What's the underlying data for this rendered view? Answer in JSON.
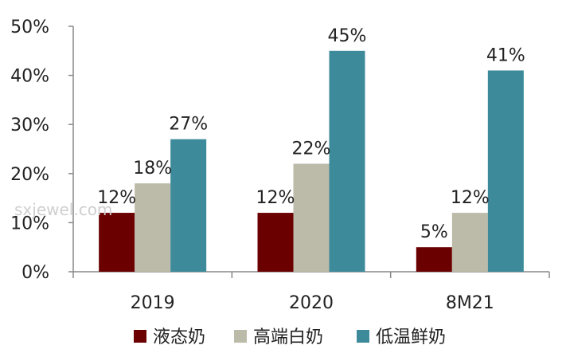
{
  "chart_data": {
    "type": "bar",
    "categories": [
      "2019",
      "2020",
      "8M21"
    ],
    "series": [
      {
        "name": "液态奶",
        "values": [
          12,
          12,
          5
        ],
        "labels": [
          "12%",
          "12%",
          "5%"
        ],
        "color": "#6b0000"
      },
      {
        "name": "高端白奶",
        "values": [
          18,
          22,
          12
        ],
        "labels": [
          "18%",
          "22%",
          "12%"
        ],
        "color": "#bcbaa8"
      },
      {
        "name": "低温鲜奶",
        "values": [
          27,
          45,
          41
        ],
        "labels": [
          "27%",
          "45%",
          "41%"
        ],
        "color": "#3d8a9b"
      }
    ],
    "ylim": [
      0,
      50
    ],
    "yticks": [
      0,
      10,
      20,
      30,
      40,
      50
    ],
    "ytick_labels": [
      "0%",
      "10%",
      "20%",
      "30%",
      "40%",
      "50%"
    ],
    "grid": false,
    "legend_position": "bottom"
  },
  "watermark": "sxjewel.com"
}
